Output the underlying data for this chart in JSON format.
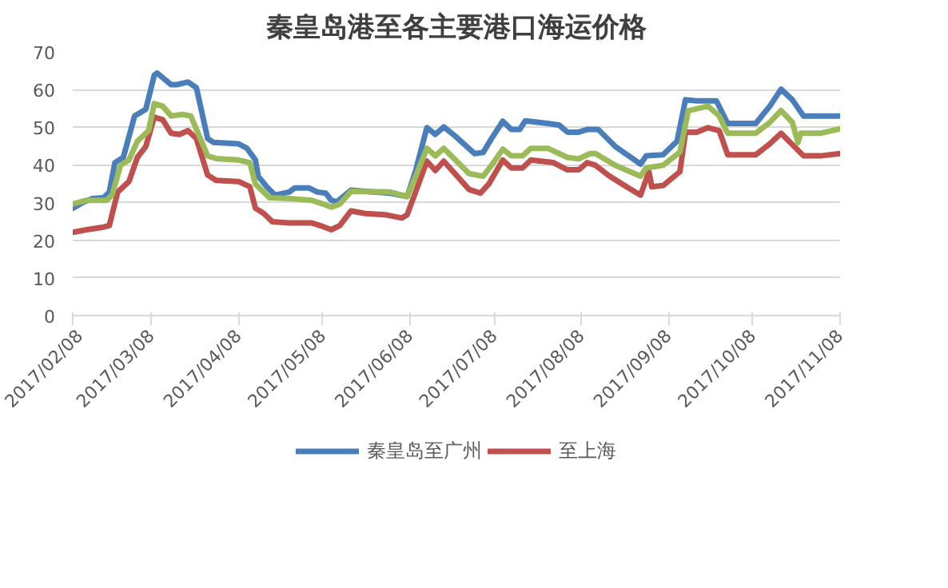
{
  "chart_data": {
    "type": "line",
    "title": "秦皇岛港至各主要港口海运价格",
    "xlim": [
      "2017-02-08",
      "2017-11-08"
    ],
    "xticks": [
      {
        "value": "2017-02-08",
        "label": "2017/02/08"
      },
      {
        "value": "2017-03-08",
        "label": "2017/03/08"
      },
      {
        "value": "2017-04-08",
        "label": "2017/04/08"
      },
      {
        "value": "2017-05-08",
        "label": "2017/05/08"
      },
      {
        "value": "2017-06-08",
        "label": "2017/06/08"
      },
      {
        "value": "2017-07-08",
        "label": "2017/07/08"
      },
      {
        "value": "2017-08-08",
        "label": "2017/08/08"
      },
      {
        "value": "2017-09-08",
        "label": "2017/09/08"
      },
      {
        "value": "2017-10-08",
        "label": "2017/10/08"
      },
      {
        "value": "2017-11-08",
        "label": "2017/11/08"
      }
    ],
    "ylim": [
      0,
      70
    ],
    "yticks": [
      0,
      10,
      20,
      30,
      40,
      50,
      60,
      70
    ],
    "grid": "y",
    "legend": "bottom",
    "marker": "none",
    "line_style": "solid",
    "series": [
      {
        "name": "秦皇岛至广州",
        "color": "#4a7ebb",
        "x": [
          "2017-02-08",
          "2017-02-12",
          "2017-02-15",
          "2017-02-19",
          "2017-02-21",
          "2017-02-23",
          "2017-02-26",
          "2017-03-02",
          "2017-03-06",
          "2017-03-09",
          "2017-03-10",
          "2017-03-15",
          "2017-03-17",
          "2017-03-21",
          "2017-03-24",
          "2017-03-28",
          "2017-03-30",
          "2017-04-08",
          "2017-04-11",
          "2017-04-14",
          "2017-04-15",
          "2017-04-18",
          "2017-04-21",
          "2017-04-26",
          "2017-04-28",
          "2017-05-03",
          "2017-05-06",
          "2017-05-09",
          "2017-05-11",
          "2017-05-13",
          "2017-05-18",
          "2017-05-23",
          "2017-06-01",
          "2017-06-07",
          "2017-06-10",
          "2017-06-14",
          "2017-06-17",
          "2017-06-20",
          "2017-06-24",
          "2017-07-01",
          "2017-07-04",
          "2017-07-07",
          "2017-07-11",
          "2017-07-14",
          "2017-07-17",
          "2017-07-19",
          "2017-07-27",
          "2017-07-31",
          "2017-08-03",
          "2017-08-07",
          "2017-08-10",
          "2017-08-14",
          "2017-08-20",
          "2017-08-29",
          "2017-08-31",
          "2017-09-06",
          "2017-09-11",
          "2017-09-14",
          "2017-09-18",
          "2017-09-25",
          "2017-09-29",
          "2017-10-09",
          "2017-10-14",
          "2017-10-18",
          "2017-10-22",
          "2017-10-26",
          "2017-11-01",
          "2017-11-08"
        ],
        "values": [
          28.5,
          30.2,
          31.1,
          31.3,
          32.8,
          40.6,
          42,
          53,
          54.8,
          63.8,
          64.4,
          61.3,
          61.3,
          62,
          60.5,
          47,
          46,
          45.6,
          44.4,
          41.3,
          37,
          34.2,
          32,
          32.8,
          33.9,
          33.9,
          32.8,
          32.5,
          30.6,
          30.2,
          33.3,
          33,
          32.5,
          31.6,
          38.5,
          49.9,
          48.1,
          50.1,
          47.7,
          43,
          43.3,
          47,
          51.6,
          49.4,
          49.4,
          51.7,
          51,
          50.6,
          48.7,
          48.7,
          49.4,
          49.4,
          44.9,
          40.2,
          42.4,
          42.7,
          46.3,
          57.3,
          57,
          57,
          51,
          51,
          55.6,
          60.1,
          57.3,
          53,
          53,
          53
        ]
      },
      {
        "name": "至上海",
        "color": "#c0504d",
        "x": [
          "2017-02-08",
          "2017-02-13",
          "2017-02-19",
          "2017-02-21",
          "2017-02-24",
          "2017-02-28",
          "2017-03-03",
          "2017-03-06",
          "2017-03-09",
          "2017-03-12",
          "2017-03-15",
          "2017-03-18",
          "2017-03-21",
          "2017-03-24",
          "2017-03-28",
          "2017-03-31",
          "2017-04-08",
          "2017-04-12",
          "2017-04-14",
          "2017-04-17",
          "2017-04-20",
          "2017-04-26",
          "2017-05-04",
          "2017-05-07",
          "2017-05-11",
          "2017-05-14",
          "2017-05-18",
          "2017-05-23",
          "2017-05-30",
          "2017-06-05",
          "2017-06-07",
          "2017-06-11",
          "2017-06-14",
          "2017-06-17",
          "2017-06-20",
          "2017-06-29",
          "2017-07-03",
          "2017-07-06",
          "2017-07-11",
          "2017-07-14",
          "2017-07-18",
          "2017-07-21",
          "2017-07-29",
          "2017-08-03",
          "2017-08-07",
          "2017-08-10",
          "2017-08-13",
          "2017-08-18",
          "2017-08-24",
          "2017-08-29",
          "2017-09-01",
          "2017-09-02",
          "2017-09-06",
          "2017-09-12",
          "2017-09-14",
          "2017-09-18",
          "2017-09-22",
          "2017-09-26",
          "2017-09-29",
          "2017-10-09",
          "2017-10-14",
          "2017-10-18",
          "2017-10-26",
          "2017-11-01",
          "2017-11-08"
        ],
        "values": [
          22.1,
          22.8,
          23.5,
          23.9,
          32.8,
          35.6,
          42,
          44.9,
          52.7,
          52,
          48.4,
          48.1,
          49.1,
          47,
          37.3,
          35.9,
          35.6,
          34.2,
          28.5,
          27.1,
          24.9,
          24.6,
          24.6,
          23.9,
          22.8,
          23.9,
          27.8,
          27.1,
          26.8,
          25.9,
          26.8,
          34.9,
          41,
          38.5,
          41,
          33.5,
          32.5,
          34.9,
          41.3,
          39.2,
          39.2,
          41.3,
          40.6,
          38.7,
          38.7,
          40.6,
          39.9,
          37,
          34.2,
          32,
          38.2,
          34.2,
          34.5,
          38.2,
          48.7,
          48.7,
          49.9,
          49.1,
          42.7,
          42.7,
          45.6,
          48.4,
          42.4,
          42.4,
          43
        ]
      },
      {
        "color": "#9bbb59",
        "x": [
          "2017-02-08",
          "2017-02-13",
          "2017-02-20",
          "2017-02-22",
          "2017-02-25",
          "2017-02-28",
          "2017-03-03",
          "2017-03-07",
          "2017-03-09",
          "2017-03-12",
          "2017-03-15",
          "2017-03-19",
          "2017-03-22",
          "2017-03-28",
          "2017-03-31",
          "2017-04-08",
          "2017-04-12",
          "2017-04-14",
          "2017-04-19",
          "2017-04-26",
          "2017-05-04",
          "2017-05-07",
          "2017-05-11",
          "2017-05-14",
          "2017-05-18",
          "2017-06-01",
          "2017-06-07",
          "2017-06-10",
          "2017-06-14",
          "2017-06-17",
          "2017-06-20",
          "2017-06-29",
          "2017-07-04",
          "2017-07-07",
          "2017-07-11",
          "2017-07-14",
          "2017-07-18",
          "2017-07-21",
          "2017-07-27",
          "2017-08-03",
          "2017-08-07",
          "2017-08-11",
          "2017-08-13",
          "2017-08-20",
          "2017-08-29",
          "2017-08-31",
          "2017-09-06",
          "2017-09-12",
          "2017-09-15",
          "2017-09-22",
          "2017-09-26",
          "2017-09-29",
          "2017-10-09",
          "2017-10-14",
          "2017-10-18",
          "2017-10-22",
          "2017-10-24",
          "2017-10-25",
          "2017-11-01",
          "2017-11-08"
        ],
        "values": [
          29.6,
          30.6,
          30.6,
          32,
          39.9,
          41.3,
          46.3,
          49.1,
          56.3,
          55.6,
          53,
          53.4,
          53,
          42.4,
          41.7,
          41.3,
          40.6,
          34.9,
          31.3,
          31.1,
          30.6,
          29.9,
          28.8,
          29.6,
          33,
          32.8,
          31.6,
          37,
          44.4,
          42.4,
          44.4,
          37.7,
          37,
          39.9,
          44.2,
          42.4,
          42.4,
          44.4,
          44.4,
          42,
          41.6,
          43,
          43,
          39.9,
          37,
          39.2,
          39.9,
          43.4,
          54.4,
          55.6,
          53,
          48.4,
          48.4,
          51.3,
          54.4,
          51.3,
          45.9,
          48.4,
          48.4,
          49.6
        ]
      }
    ]
  }
}
